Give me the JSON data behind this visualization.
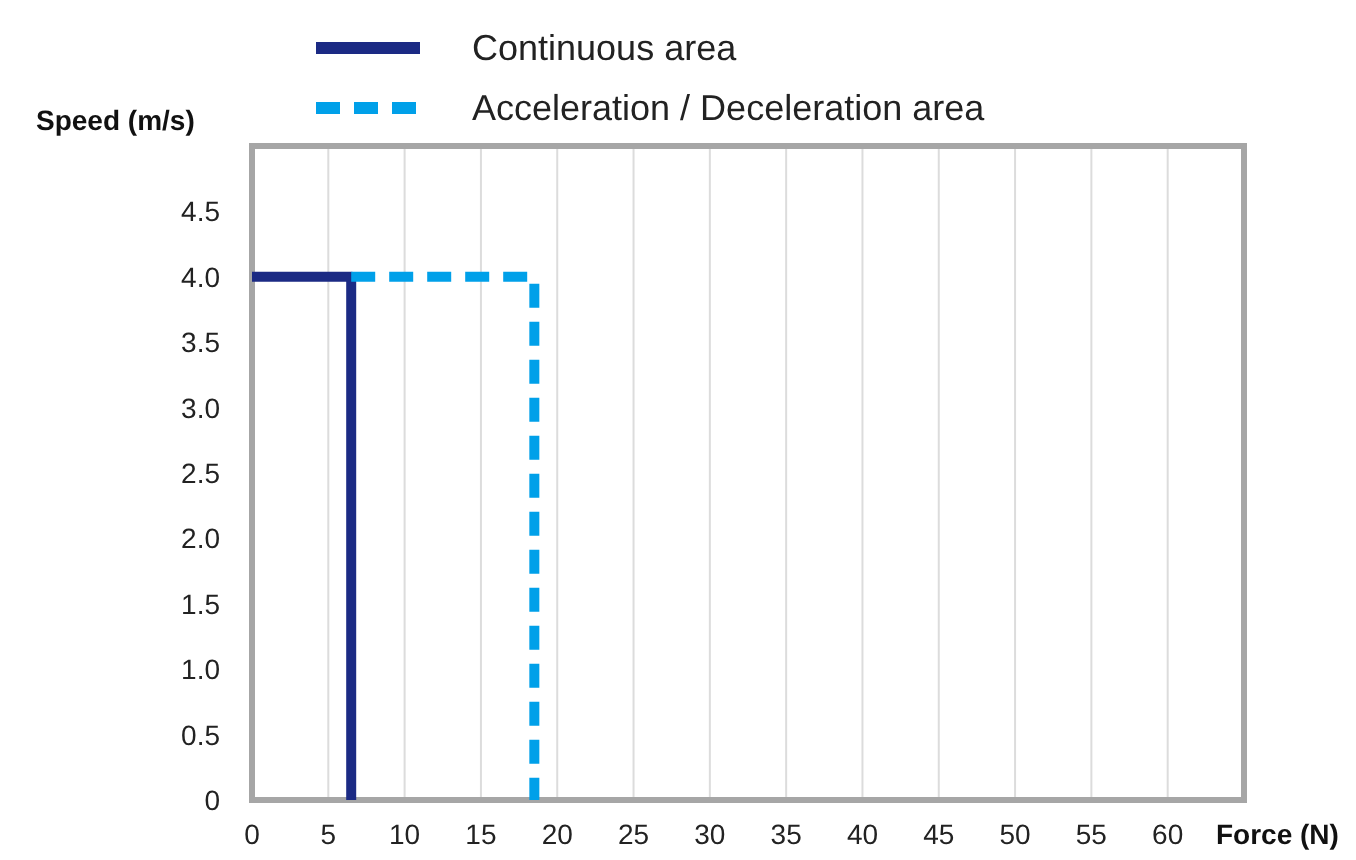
{
  "chart_data": {
    "type": "line",
    "xlabel": "Force (N)",
    "ylabel": "Speed (m/s)",
    "xlim": [
      0,
      65
    ],
    "xticks": [
      0,
      5,
      10,
      15,
      20,
      25,
      30,
      35,
      40,
      45,
      50,
      55,
      60
    ],
    "ylim": [
      0,
      5
    ],
    "yticks": [
      0,
      0.5,
      {
        "value": 1,
        "label": "1.0"
      },
      1.5,
      {
        "value": 2,
        "label": "2.0"
      },
      2.5,
      {
        "value": 3,
        "label": "3.0"
      },
      3.5,
      {
        "value": 4,
        "label": "4.0"
      },
      4.5
    ],
    "grid": "x",
    "legend": "top",
    "marker": "none",
    "series": [
      {
        "name": "Continuous area",
        "color": "#1b2a84",
        "x": [
          0,
          6.5,
          6.5
        ],
        "values": [
          4,
          4,
          0
        ],
        "line_style": "solid"
      },
      {
        "name": "Acceleration / Deceleration area",
        "color": "#00a0e9",
        "x": [
          6.5,
          18.5,
          18.5
        ],
        "values": [
          4,
          4,
          0
        ],
        "line_style": "dashed"
      }
    ]
  }
}
